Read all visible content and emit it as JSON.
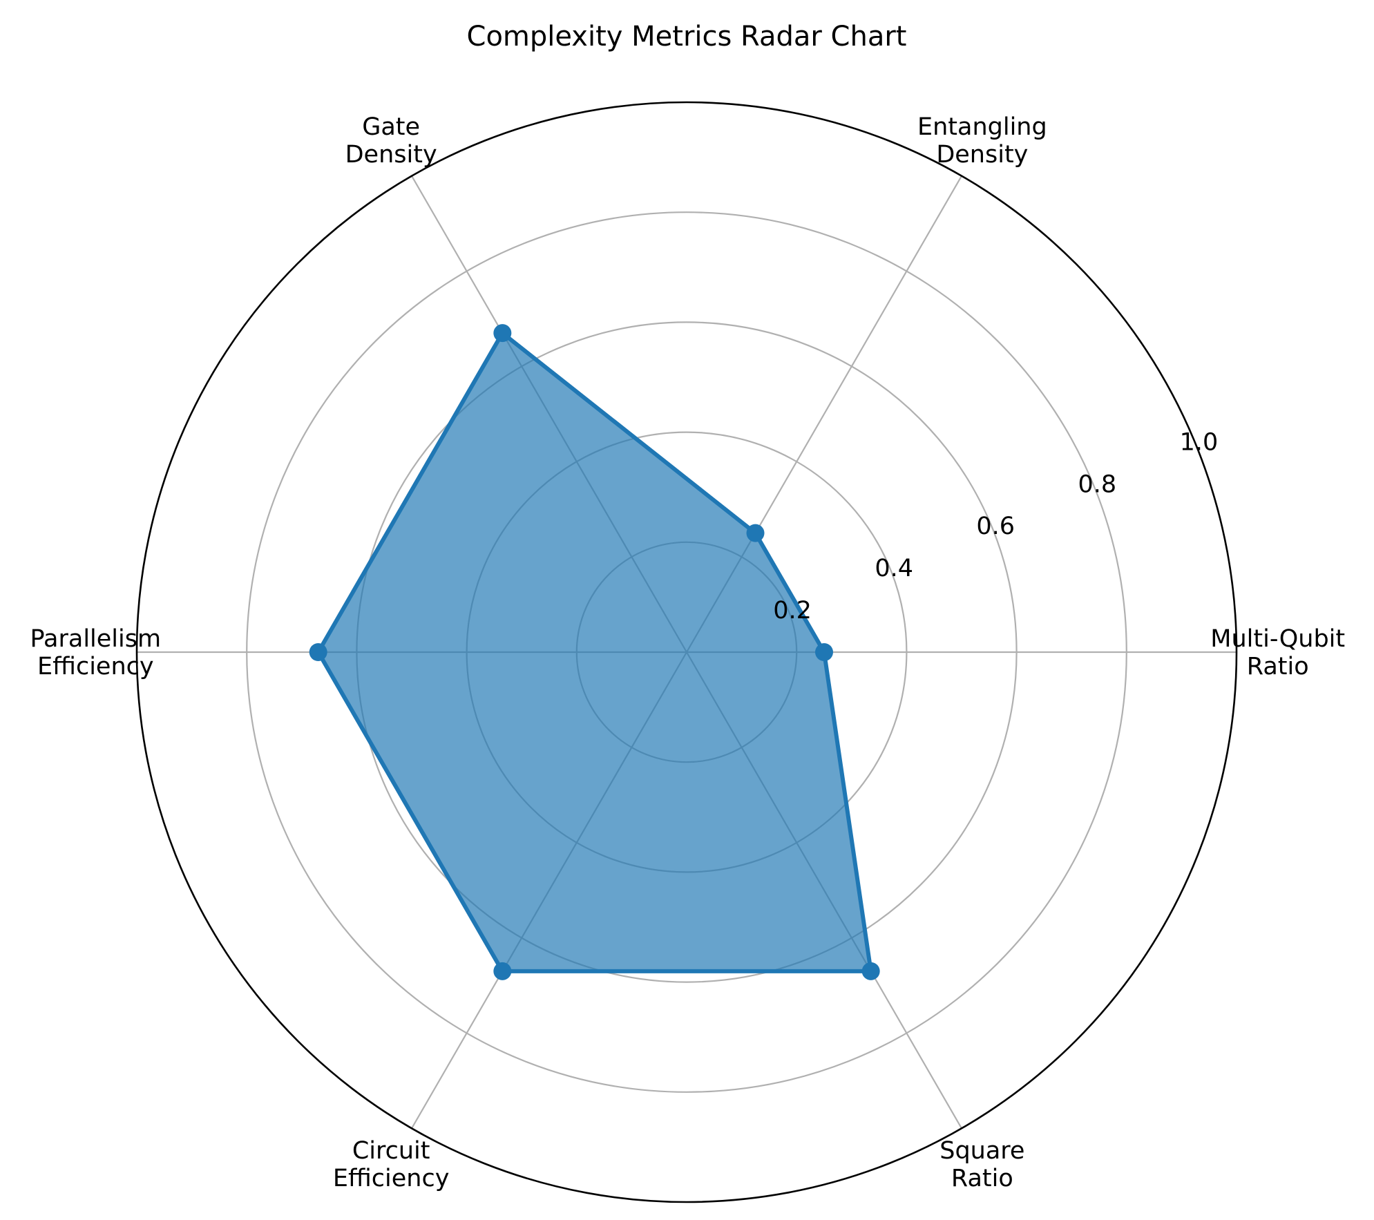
{
  "chart_data": {
    "type": "radar",
    "title": "Complexity Metrics Radar Chart",
    "categories": [
      [
        "Multi-Qubit",
        "Ratio"
      ],
      [
        "Entangling",
        "Density"
      ],
      [
        "Gate",
        "Density"
      ],
      [
        "Parallelism",
        "Efficiency"
      ],
      [
        "Circuit",
        "Efficiency"
      ],
      [
        "Square",
        "Ratio"
      ]
    ],
    "values": [
      0.25,
      0.25,
      0.67,
      0.67,
      0.67,
      0.67
    ],
    "rlim": [
      0,
      1.0
    ],
    "rticks": [
      0.2,
      0.4,
      0.6,
      0.8,
      1.0
    ],
    "rtick_labels": [
      "0.2",
      "0.4",
      "0.6",
      "0.8",
      "1.0"
    ],
    "grid": true,
    "colors": {
      "line": "#1f77b4",
      "fill": "#1f77b4",
      "grid": "#b0b0b0",
      "frame": "#000000"
    }
  }
}
